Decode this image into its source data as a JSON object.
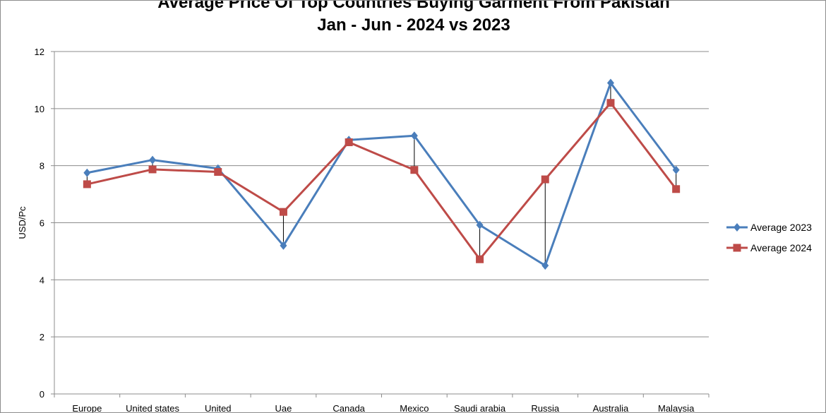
{
  "chart_data": {
    "type": "line",
    "title_lines": [
      "Average Price Of Top Countries Buying Garment From Pakistan",
      "Jan - Jun - 2024 vs 2023"
    ],
    "xlabel": "",
    "ylabel": "USD/Pc",
    "ylim": [
      0,
      12
    ],
    "yticks": [
      0,
      2,
      4,
      6,
      8,
      10,
      12
    ],
    "grid": true,
    "legend_position": "right",
    "categories": [
      "Europe",
      "United states",
      "United",
      "Uae",
      "Canada",
      "Mexico",
      "Saudi arabia",
      "Russia",
      "Australia",
      "Malaysia"
    ],
    "series": [
      {
        "name": "Average 2023",
        "color": "#4a7ebb",
        "marker": "diamond",
        "values": [
          7.75,
          8.2,
          7.9,
          5.2,
          8.9,
          9.05,
          5.92,
          4.5,
          10.9,
          7.85
        ]
      },
      {
        "name": "Average 2024",
        "color": "#be4b48",
        "marker": "square",
        "values": [
          7.35,
          7.87,
          7.78,
          6.38,
          8.82,
          7.85,
          4.72,
          7.52,
          10.2,
          7.18
        ]
      }
    ],
    "high_low_lines": true
  }
}
